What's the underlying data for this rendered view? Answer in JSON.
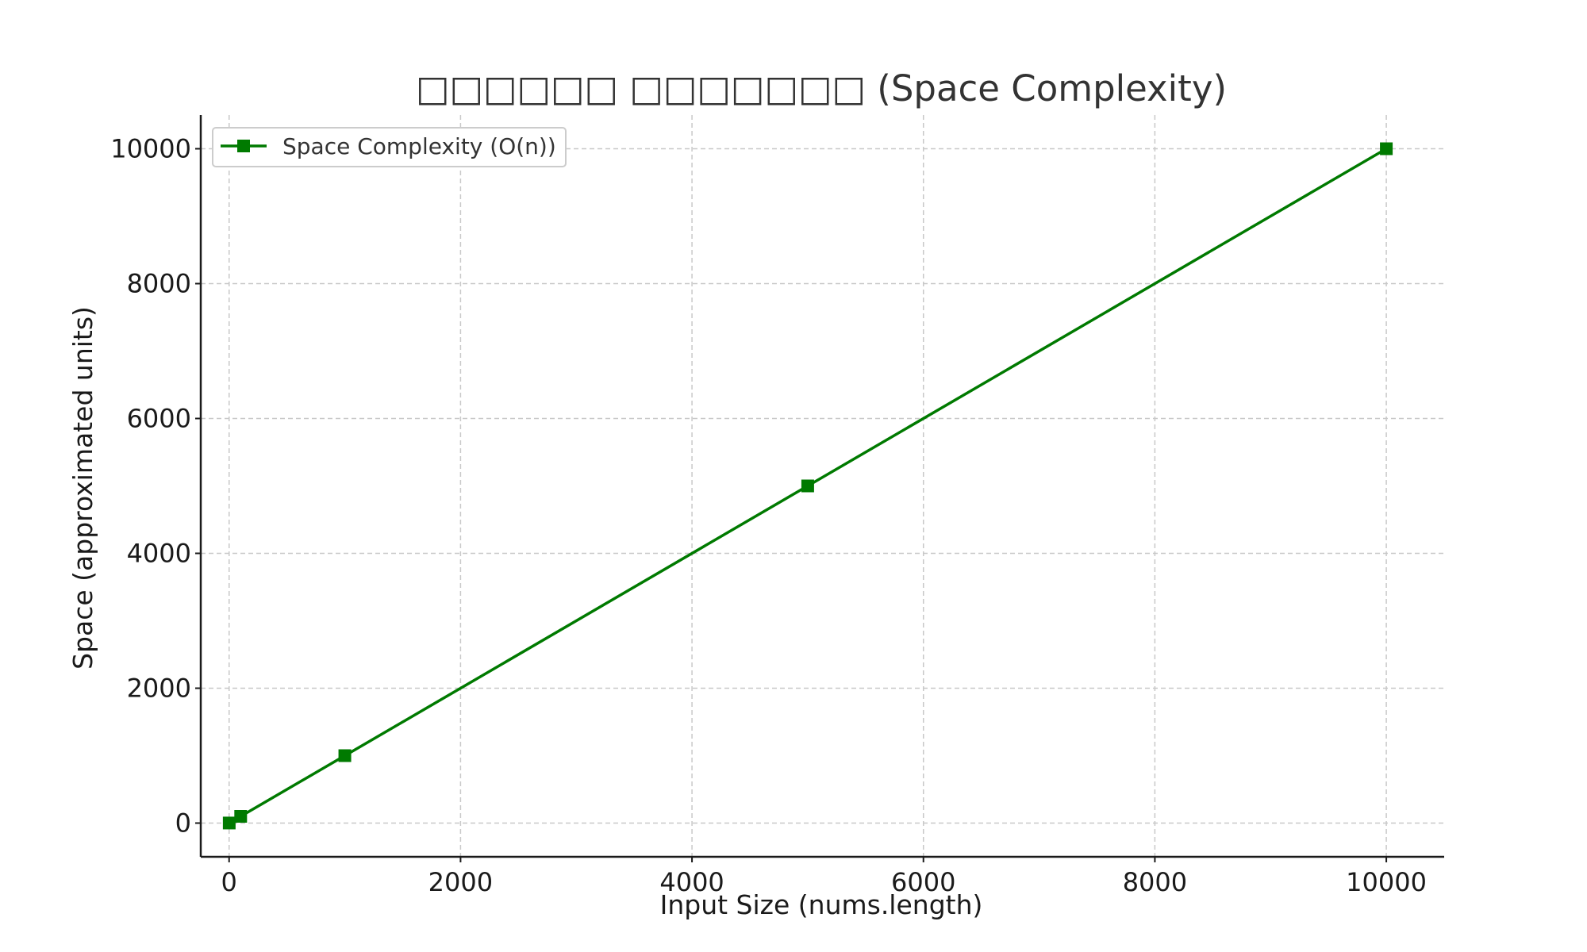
{
  "chart_data": {
    "type": "line",
    "title": "□□□□□□ □□□□□□□ (Space Complexity)",
    "xlabel": "Input Size (nums.length)",
    "ylabel": "Space (approximated units)",
    "xlim": [
      -245,
      10500
    ],
    "ylim": [
      -500,
      10500
    ],
    "xticks": [
      0,
      2000,
      4000,
      6000,
      8000,
      10000
    ],
    "yticks": [
      0,
      2000,
      4000,
      6000,
      8000,
      10000
    ],
    "grid": true,
    "legend_position": "top-left",
    "series": [
      {
        "name": "Space Complexity (O(n))",
        "color": "#007a00",
        "marker": "square",
        "x": [
          1,
          100,
          1000,
          5000,
          10000
        ],
        "y": [
          1,
          100,
          1000,
          5000,
          10000
        ]
      }
    ]
  }
}
